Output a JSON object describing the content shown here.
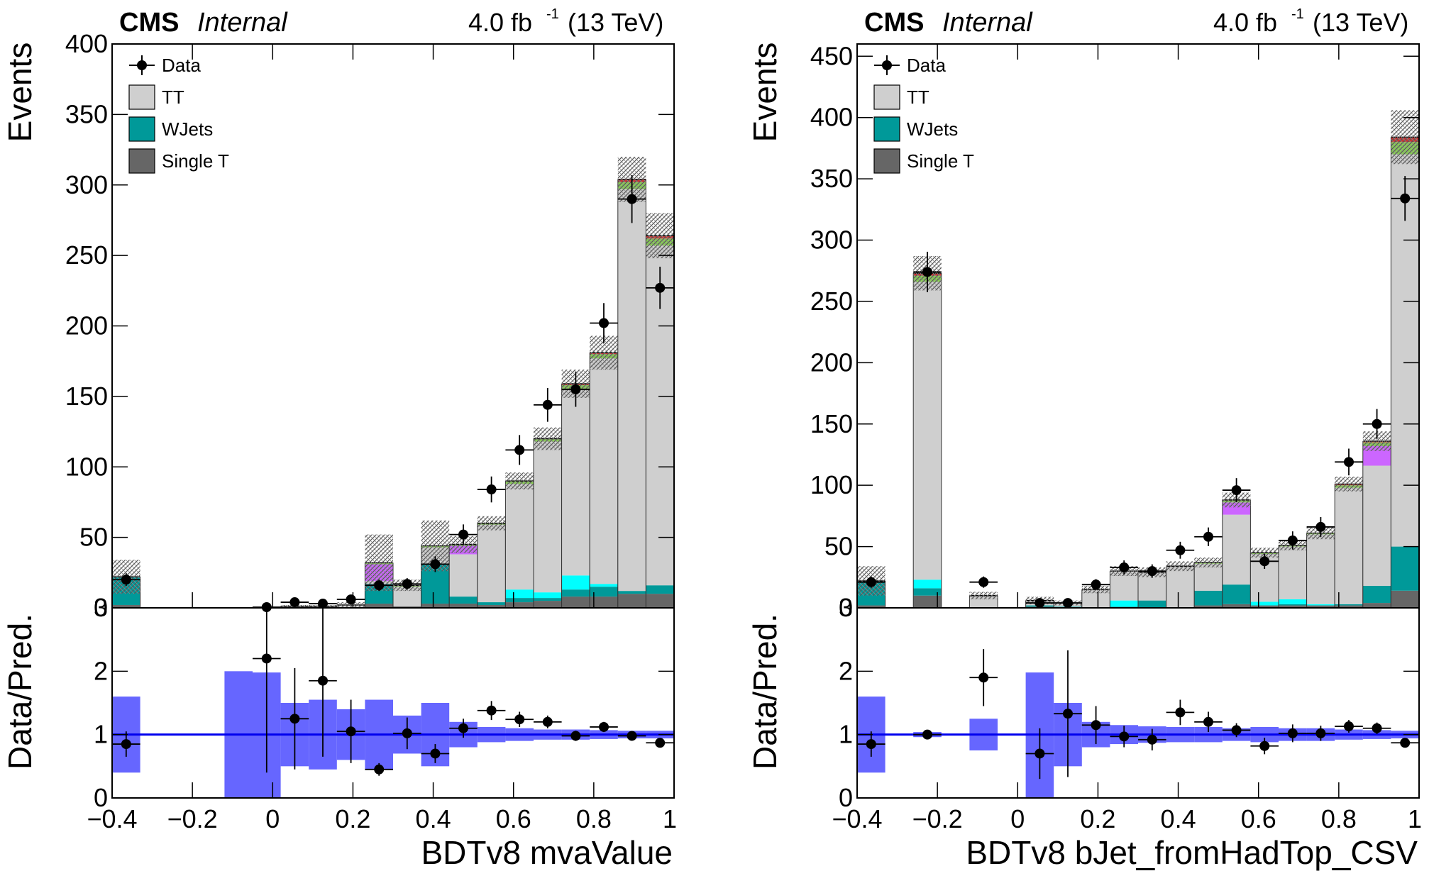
{
  "header": {
    "experiment": "CMS",
    "status": "Internal",
    "lumi": "4.0 fb",
    "lumi_sup": "-1",
    "energy": "(13 TeV)"
  },
  "legend": {
    "entries": [
      {
        "label": "Data",
        "kind": "data"
      },
      {
        "label": "TT",
        "color": "#cfcfcf"
      },
      {
        "label": "WJets",
        "color": "#009999"
      },
      {
        "label": "Single T",
        "color": "#666666"
      }
    ]
  },
  "colors": {
    "tt": "#cfcfcf",
    "wjets": "#009999",
    "singlet": "#666666",
    "cyan_bkg": "#00ffff",
    "magenta_bkg": "#cc66ff",
    "green_bkg": "#88cc55",
    "red_bkg": "#cc3333",
    "ratio_band": "#6666ff",
    "ratio_line": "#0000ee"
  },
  "chart_data": [
    {
      "type": "bar",
      "xlabel": "BDTv8 mvaValue",
      "ylabel": "Events",
      "ratio_ylabel": "Data/Pred.",
      "xlim": [
        -0.4,
        1.0
      ],
      "ylim": [
        0,
        400
      ],
      "ratio_ylim": [
        0,
        3
      ],
      "x_ticks": [
        "−0.4",
        "−0.2",
        "0",
        "0.2",
        "0.4",
        "0.6",
        "0.8",
        "1"
      ],
      "y_ticks": [
        "0",
        "50",
        "100",
        "150",
        "200",
        "250",
        "300",
        "350",
        "400"
      ],
      "ratio_ticks": [
        "0",
        "1",
        "2",
        "3"
      ],
      "bin_edges": [
        -0.4,
        -0.33,
        -0.26,
        -0.19,
        -0.12,
        -0.05,
        0.02,
        0.09,
        0.16,
        0.23,
        0.3,
        0.37,
        0.44,
        0.51,
        0.58,
        0.65,
        0.72,
        0.79,
        0.86,
        0.93,
        1.0
      ],
      "stack": {
        "singlet": [
          2,
          0,
          0,
          0,
          0,
          0,
          0,
          0,
          0,
          3,
          1,
          3,
          3,
          2,
          4,
          5,
          8,
          8,
          10,
          10
        ],
        "wjets": [
          20,
          0,
          0,
          0,
          0,
          0,
          0,
          0,
          0,
          14,
          0,
          28,
          5,
          2,
          3,
          2,
          5,
          7,
          2,
          6
        ],
        "cyan": [
          0,
          0,
          0,
          0,
          0,
          0,
          0,
          0,
          0,
          0,
          0,
          0,
          0,
          0,
          6,
          4,
          10,
          2,
          0,
          0
        ],
        "tt": [
          0,
          0,
          0,
          0,
          0,
          0,
          1,
          1,
          2,
          2,
          14,
          12,
          30,
          55,
          75,
          107,
          132,
          160,
          285,
          241
        ],
        "magenta": [
          0,
          0,
          0,
          0,
          0,
          0,
          0,
          0,
          0,
          12,
          0,
          0,
          6,
          0,
          0,
          0,
          0,
          0,
          0,
          0
        ],
        "green": [
          0,
          0,
          0,
          0,
          0,
          0,
          0,
          0,
          0,
          1,
          1,
          1,
          1,
          1,
          2,
          2,
          3,
          3,
          5,
          5
        ],
        "red": [
          0,
          0,
          0,
          0,
          0,
          0,
          0,
          0,
          0,
          0,
          0,
          0,
          0,
          0,
          0,
          0,
          1,
          1,
          2,
          2
        ],
        "uncertainty": [
          12,
          0,
          0,
          0,
          0,
          0,
          1,
          1,
          2,
          20,
          4,
          18,
          6,
          5,
          6,
          8,
          10,
          12,
          16,
          16
        ]
      },
      "data": [
        {
          "x": -0.365,
          "y": 20,
          "err": 4.5
        },
        {
          "x": -0.015,
          "y": 0.5,
          "err": 1
        },
        {
          "x": 0.055,
          "y": 4,
          "err": 2
        },
        {
          "x": 0.125,
          "y": 3,
          "err": 1.7
        },
        {
          "x": 0.195,
          "y": 6,
          "err": 2.4
        },
        {
          "x": 0.265,
          "y": 16,
          "err": 4
        },
        {
          "x": 0.335,
          "y": 17,
          "err": 4.1
        },
        {
          "x": 0.405,
          "y": 31,
          "err": 5.6
        },
        {
          "x": 0.475,
          "y": 52,
          "err": 7.2
        },
        {
          "x": 0.545,
          "y": 84,
          "err": 9.2
        },
        {
          "x": 0.615,
          "y": 112,
          "err": 10.6
        },
        {
          "x": 0.685,
          "y": 144,
          "err": 12
        },
        {
          "x": 0.755,
          "y": 155,
          "err": 12.4
        },
        {
          "x": 0.825,
          "y": 202,
          "err": 14.2
        },
        {
          "x": 0.895,
          "y": 290,
          "err": 17
        },
        {
          "x": 0.965,
          "y": 227,
          "err": 15
        }
      ],
      "ratio_band": [
        {
          "x0": -0.4,
          "x1": -0.33,
          "lo": 0.4,
          "hi": 1.6
        },
        {
          "x0": -0.12,
          "x1": -0.05,
          "lo": 0,
          "hi": 2.0
        },
        {
          "x0": -0.05,
          "x1": 0.02,
          "lo": 0,
          "hi": 1.98
        },
        {
          "x0": 0.02,
          "x1": 0.09,
          "lo": 0.5,
          "hi": 1.5
        },
        {
          "x0": 0.09,
          "x1": 0.16,
          "lo": 0.45,
          "hi": 1.55
        },
        {
          "x0": 0.16,
          "x1": 0.23,
          "lo": 0.6,
          "hi": 1.4
        },
        {
          "x0": 0.23,
          "x1": 0.3,
          "lo": 0.45,
          "hi": 1.55
        },
        {
          "x0": 0.3,
          "x1": 0.37,
          "lo": 0.7,
          "hi": 1.3
        },
        {
          "x0": 0.37,
          "x1": 0.44,
          "lo": 0.5,
          "hi": 1.5
        },
        {
          "x0": 0.44,
          "x1": 0.51,
          "lo": 0.8,
          "hi": 1.2
        },
        {
          "x0": 0.51,
          "x1": 0.58,
          "lo": 0.88,
          "hi": 1.12
        },
        {
          "x0": 0.58,
          "x1": 0.65,
          "lo": 0.9,
          "hi": 1.1
        },
        {
          "x0": 0.65,
          "x1": 0.72,
          "lo": 0.92,
          "hi": 1.08
        },
        {
          "x0": 0.72,
          "x1": 0.79,
          "lo": 0.92,
          "hi": 1.08
        },
        {
          "x0": 0.79,
          "x1": 0.86,
          "lo": 0.93,
          "hi": 1.07
        },
        {
          "x0": 0.86,
          "x1": 0.93,
          "lo": 0.94,
          "hi": 1.06
        },
        {
          "x0": 0.93,
          "x1": 1.0,
          "lo": 0.94,
          "hi": 1.06
        }
      ],
      "ratio_points": [
        {
          "x": -0.365,
          "y": 0.85,
          "err": 0.2
        },
        {
          "x": -0.015,
          "y": 2.2,
          "err": 1.8
        },
        {
          "x": 0.055,
          "y": 1.25,
          "err": 0.8
        },
        {
          "x": 0.125,
          "y": 1.85,
          "err": 1.2
        },
        {
          "x": 0.195,
          "y": 1.05,
          "err": 0.5
        },
        {
          "x": 0.265,
          "y": 0.45,
          "err": 0.1
        },
        {
          "x": 0.335,
          "y": 1.02,
          "err": 0.25
        },
        {
          "x": 0.405,
          "y": 0.7,
          "err": 0.15
        },
        {
          "x": 0.475,
          "y": 1.1,
          "err": 0.15
        },
        {
          "x": 0.545,
          "y": 1.38,
          "err": 0.15
        },
        {
          "x": 0.615,
          "y": 1.24,
          "err": 0.12
        },
        {
          "x": 0.685,
          "y": 1.2,
          "err": 0.1
        },
        {
          "x": 0.755,
          "y": 0.98,
          "err": 0.08
        },
        {
          "x": 0.825,
          "y": 1.12,
          "err": 0.08
        },
        {
          "x": 0.895,
          "y": 0.98,
          "err": 0.06
        },
        {
          "x": 0.965,
          "y": 0.87,
          "err": 0.06
        }
      ]
    },
    {
      "type": "bar",
      "xlabel": "BDTv8 bJet_fromHadTop_CSV",
      "ylabel": "Events",
      "ratio_ylabel": "Data/Pred.",
      "xlim": [
        -0.4,
        1.0
      ],
      "ylim": [
        0,
        460
      ],
      "ratio_ylim": [
        0,
        3
      ],
      "x_ticks": [
        "−0.4",
        "−0.2",
        "0",
        "0.2",
        "0.4",
        "0.6",
        "0.8",
        "1"
      ],
      "y_ticks": [
        "0",
        "50",
        "100",
        "150",
        "200",
        "250",
        "300",
        "350",
        "400",
        "450"
      ],
      "ratio_ticks": [
        "0",
        "1",
        "2",
        "3"
      ],
      "bin_edges": [
        -0.4,
        -0.33,
        -0.26,
        -0.19,
        -0.12,
        -0.05,
        0.02,
        0.09,
        0.16,
        0.23,
        0.3,
        0.37,
        0.44,
        0.51,
        0.58,
        0.65,
        0.72,
        0.79,
        0.86,
        0.93,
        1.0
      ],
      "stack": {
        "singlet": [
          2,
          0,
          10,
          0,
          0,
          0,
          1,
          0,
          0,
          0,
          0,
          0,
          2,
          3,
          2,
          2,
          2,
          2,
          4,
          14
        ],
        "wjets": [
          20,
          0,
          6,
          0,
          0,
          0,
          1,
          1,
          0,
          1,
          6,
          0,
          12,
          16,
          0,
          1,
          0,
          1,
          14,
          36
        ],
        "cyan": [
          0,
          0,
          7,
          0,
          0,
          0,
          0,
          0,
          0,
          5,
          0,
          0,
          0,
          0,
          3,
          4,
          1,
          0,
          0,
          0
        ],
        "tt": [
          0,
          0,
          243,
          0,
          10,
          0,
          4,
          3,
          15,
          24,
          23,
          34,
          22,
          57,
          39,
          43,
          57,
          95,
          98,
          320
        ],
        "magenta": [
          0,
          0,
          0,
          0,
          0,
          0,
          0,
          0,
          0,
          0,
          0,
          0,
          0,
          10,
          0,
          0,
          0,
          0,
          16,
          0
        ],
        "green": [
          0,
          0,
          5,
          0,
          0,
          0,
          0,
          0,
          0,
          0,
          0,
          0,
          1,
          2,
          1,
          1,
          1,
          2,
          3,
          10
        ],
        "red": [
          0,
          0,
          2,
          0,
          0,
          0,
          0,
          0,
          0,
          0,
          0,
          0,
          0,
          0,
          0,
          0,
          0,
          1,
          1,
          4
        ],
        "uncertainty": [
          12,
          0,
          14,
          0,
          3,
          0,
          3,
          2,
          3,
          4,
          4,
          4,
          4,
          6,
          4,
          4,
          5,
          6,
          8,
          22
        ]
      },
      "data": [
        {
          "x": -0.365,
          "y": 21,
          "err": 4.6
        },
        {
          "x": -0.225,
          "y": 274,
          "err": 16.5
        },
        {
          "x": -0.085,
          "y": 21,
          "err": 4.6
        },
        {
          "x": 0.055,
          "y": 4,
          "err": 2
        },
        {
          "x": 0.125,
          "y": 4,
          "err": 2
        },
        {
          "x": 0.195,
          "y": 19,
          "err": 4.4
        },
        {
          "x": 0.265,
          "y": 33,
          "err": 5.7
        },
        {
          "x": 0.335,
          "y": 30,
          "err": 5.5
        },
        {
          "x": 0.405,
          "y": 47,
          "err": 6.9
        },
        {
          "x": 0.475,
          "y": 58,
          "err": 7.6
        },
        {
          "x": 0.545,
          "y": 96,
          "err": 9.8
        },
        {
          "x": 0.615,
          "y": 38,
          "err": 6.2
        },
        {
          "x": 0.685,
          "y": 55,
          "err": 7.4
        },
        {
          "x": 0.755,
          "y": 66,
          "err": 8.1
        },
        {
          "x": 0.825,
          "y": 119,
          "err": 10.9
        },
        {
          "x": 0.895,
          "y": 150,
          "err": 12.2
        },
        {
          "x": 0.965,
          "y": 334,
          "err": 18.3
        }
      ],
      "ratio_band": [
        {
          "x0": -0.4,
          "x1": -0.33,
          "lo": 0.4,
          "hi": 1.6
        },
        {
          "x0": -0.26,
          "x1": -0.19,
          "lo": 0.96,
          "hi": 1.04
        },
        {
          "x0": -0.12,
          "x1": -0.05,
          "lo": 0.75,
          "hi": 1.25
        },
        {
          "x0": 0.02,
          "x1": 0.09,
          "lo": 0,
          "hi": 1.98
        },
        {
          "x0": 0.09,
          "x1": 0.16,
          "lo": 0.5,
          "hi": 1.5
        },
        {
          "x0": 0.16,
          "x1": 0.23,
          "lo": 0.8,
          "hi": 1.2
        },
        {
          "x0": 0.23,
          "x1": 0.3,
          "lo": 0.85,
          "hi": 1.15
        },
        {
          "x0": 0.3,
          "x1": 0.37,
          "lo": 0.87,
          "hi": 1.13
        },
        {
          "x0": 0.37,
          "x1": 0.44,
          "lo": 0.88,
          "hi": 1.12
        },
        {
          "x0": 0.44,
          "x1": 0.51,
          "lo": 0.88,
          "hi": 1.12
        },
        {
          "x0": 0.51,
          "x1": 0.58,
          "lo": 0.9,
          "hi": 1.1
        },
        {
          "x0": 0.58,
          "x1": 0.65,
          "lo": 0.88,
          "hi": 1.12
        },
        {
          "x0": 0.65,
          "x1": 0.72,
          "lo": 0.9,
          "hi": 1.1
        },
        {
          "x0": 0.72,
          "x1": 0.79,
          "lo": 0.9,
          "hi": 1.1
        },
        {
          "x0": 0.79,
          "x1": 0.86,
          "lo": 0.92,
          "hi": 1.08
        },
        {
          "x0": 0.86,
          "x1": 0.93,
          "lo": 0.93,
          "hi": 1.07
        },
        {
          "x0": 0.93,
          "x1": 1.0,
          "lo": 0.94,
          "hi": 1.06
        }
      ],
      "ratio_points": [
        {
          "x": -0.365,
          "y": 0.85,
          "err": 0.2
        },
        {
          "x": -0.225,
          "y": 1.0,
          "err": 0.06
        },
        {
          "x": -0.085,
          "y": 1.9,
          "err": 0.45
        },
        {
          "x": 0.055,
          "y": 0.7,
          "err": 0.4
        },
        {
          "x": 0.125,
          "y": 1.33,
          "err": 1.0
        },
        {
          "x": 0.195,
          "y": 1.15,
          "err": 0.3
        },
        {
          "x": 0.265,
          "y": 0.97,
          "err": 0.17
        },
        {
          "x": 0.335,
          "y": 0.92,
          "err": 0.17
        },
        {
          "x": 0.405,
          "y": 1.35,
          "err": 0.2
        },
        {
          "x": 0.475,
          "y": 1.2,
          "err": 0.16
        },
        {
          "x": 0.545,
          "y": 1.07,
          "err": 0.11
        },
        {
          "x": 0.615,
          "y": 0.82,
          "err": 0.13
        },
        {
          "x": 0.685,
          "y": 1.02,
          "err": 0.14
        },
        {
          "x": 0.755,
          "y": 1.02,
          "err": 0.12
        },
        {
          "x": 0.825,
          "y": 1.13,
          "err": 0.1
        },
        {
          "x": 0.895,
          "y": 1.1,
          "err": 0.09
        },
        {
          "x": 0.965,
          "y": 0.87,
          "err": 0.05
        }
      ]
    }
  ]
}
